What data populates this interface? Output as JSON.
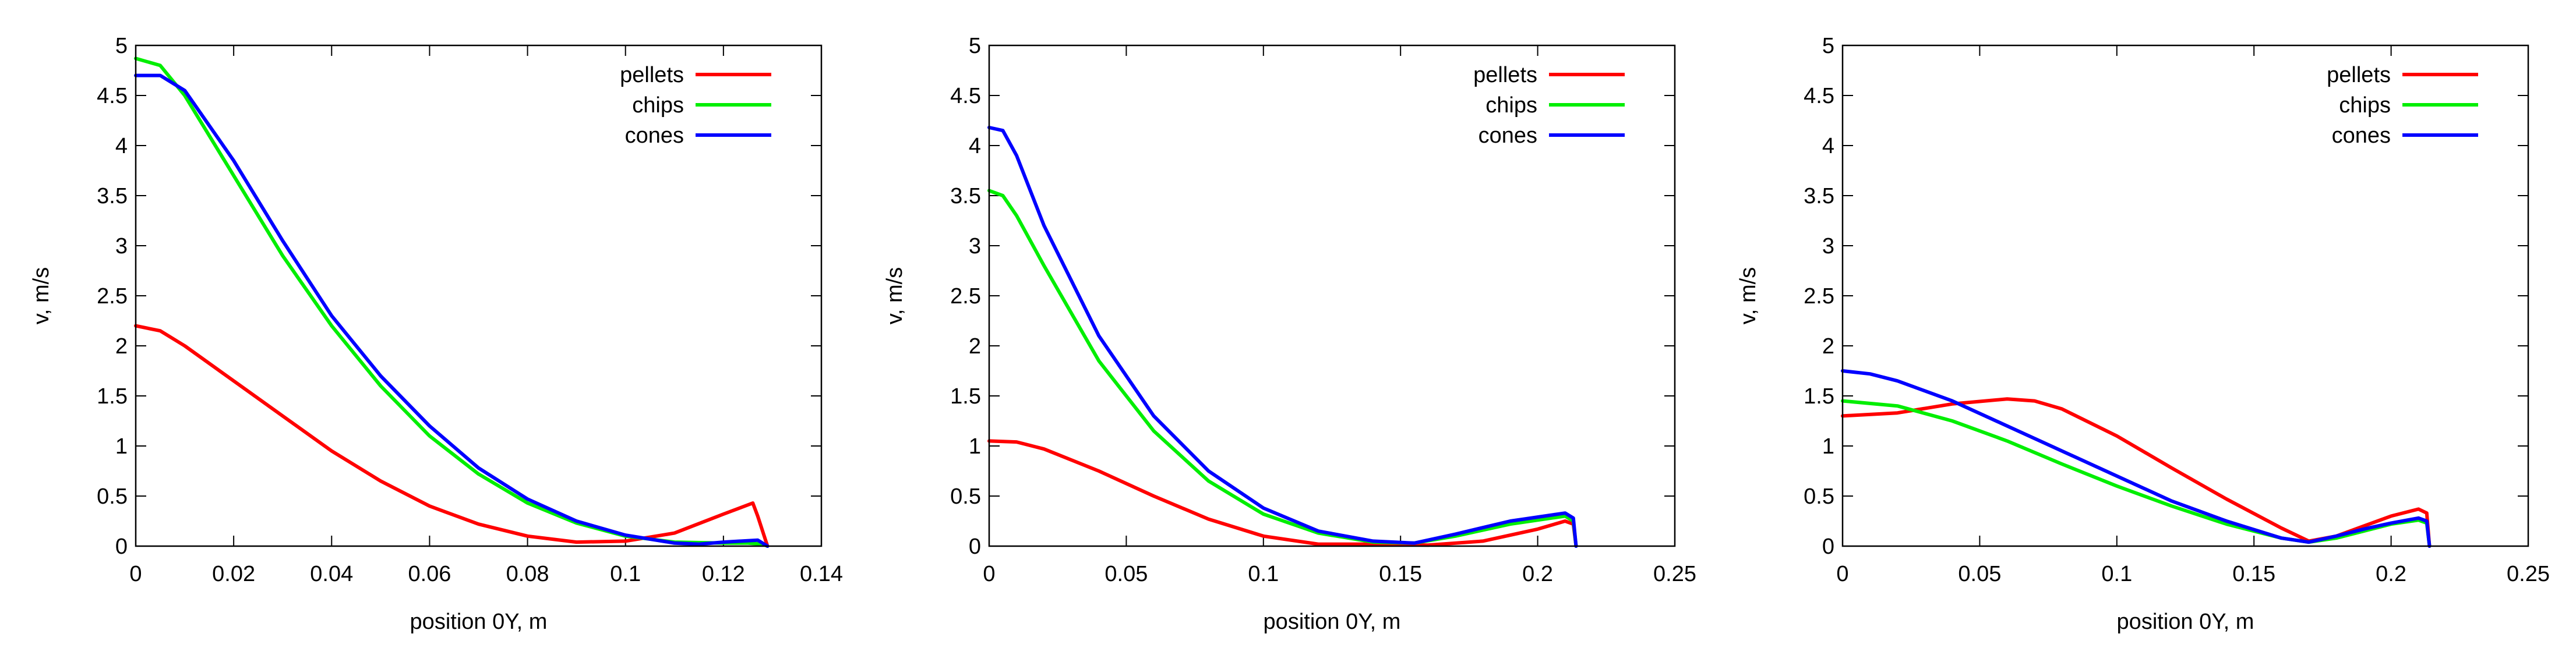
{
  "chart_data": [
    {
      "type": "line",
      "title": "",
      "xlabel": "position 0Y, m",
      "ylabel": "v, m/s",
      "xlim": [
        0,
        0.14
      ],
      "ylim": [
        0,
        5
      ],
      "xticks": [
        0,
        0.02,
        0.04,
        0.06,
        0.08,
        0.1,
        0.12,
        0.14
      ],
      "xtick_labels": [
        "0",
        "0.02",
        "0.04",
        "0.06",
        "0.08",
        "0.1",
        "0.12",
        "0.14"
      ],
      "yticks": [
        0,
        0.5,
        1,
        1.5,
        2,
        2.5,
        3,
        3.5,
        4,
        4.5,
        5
      ],
      "ytick_labels": [
        "0",
        "0.5",
        "1",
        "1.5",
        "2",
        "2.5",
        "3",
        "3.5",
        "4",
        "4.5",
        "5"
      ],
      "legend_position": "top-right",
      "series": [
        {
          "name": "pellets",
          "color": "#ff0000",
          "x": [
            0,
            0.005,
            0.01,
            0.02,
            0.03,
            0.04,
            0.05,
            0.06,
            0.07,
            0.08,
            0.09,
            0.1,
            0.11,
            0.12,
            0.126,
            0.127,
            0.129
          ],
          "y": [
            2.2,
            2.15,
            2.0,
            1.65,
            1.3,
            0.95,
            0.65,
            0.4,
            0.22,
            0.1,
            0.04,
            0.05,
            0.13,
            0.32,
            0.43,
            0.3,
            0.0
          ]
        },
        {
          "name": "chips",
          "color": "#00ee00",
          "x": [
            0,
            0.005,
            0.01,
            0.02,
            0.03,
            0.04,
            0.05,
            0.06,
            0.07,
            0.08,
            0.09,
            0.1,
            0.11,
            0.12,
            0.125,
            0.128,
            0.129
          ],
          "y": [
            4.87,
            4.8,
            4.5,
            3.7,
            2.9,
            2.2,
            1.6,
            1.1,
            0.72,
            0.43,
            0.23,
            0.1,
            0.04,
            0.03,
            0.03,
            0.02,
            0.0
          ]
        },
        {
          "name": "cones",
          "color": "#0000ff",
          "x": [
            0,
            0.005,
            0.01,
            0.02,
            0.03,
            0.04,
            0.05,
            0.06,
            0.07,
            0.08,
            0.09,
            0.1,
            0.11,
            0.115,
            0.12,
            0.127,
            0.129
          ],
          "y": [
            4.7,
            4.7,
            4.55,
            3.85,
            3.05,
            2.3,
            1.7,
            1.2,
            0.78,
            0.47,
            0.25,
            0.11,
            0.03,
            0.02,
            0.04,
            0.06,
            0.0
          ]
        }
      ]
    },
    {
      "type": "line",
      "title": "",
      "xlabel": "position 0Y, m",
      "ylabel": "v, m/s",
      "xlim": [
        0,
        0.25
      ],
      "ylim": [
        0,
        5
      ],
      "xticks": [
        0,
        0.05,
        0.1,
        0.15,
        0.2,
        0.25
      ],
      "xtick_labels": [
        "0",
        "0.05",
        "0.1",
        "0.15",
        "0.2",
        "0.25"
      ],
      "yticks": [
        0,
        0.5,
        1,
        1.5,
        2,
        2.5,
        3,
        3.5,
        4,
        4.5,
        5
      ],
      "ytick_labels": [
        "0",
        "0.5",
        "1",
        "1.5",
        "2",
        "2.5",
        "3",
        "3.5",
        "4",
        "4.5",
        "5"
      ],
      "legend_position": "top-right",
      "series": [
        {
          "name": "pellets",
          "color": "#ff0000",
          "x": [
            0,
            0.01,
            0.02,
            0.04,
            0.06,
            0.08,
            0.1,
            0.12,
            0.14,
            0.16,
            0.18,
            0.2,
            0.21,
            0.213,
            0.214
          ],
          "y": [
            1.05,
            1.04,
            0.97,
            0.75,
            0.5,
            0.27,
            0.1,
            0.02,
            0.02,
            0.01,
            0.05,
            0.17,
            0.25,
            0.22,
            0.0
          ]
        },
        {
          "name": "chips",
          "color": "#00ee00",
          "x": [
            0,
            0.005,
            0.01,
            0.02,
            0.04,
            0.06,
            0.08,
            0.1,
            0.12,
            0.14,
            0.155,
            0.17,
            0.19,
            0.21,
            0.213,
            0.214
          ],
          "y": [
            3.55,
            3.5,
            3.3,
            2.8,
            1.85,
            1.15,
            0.65,
            0.32,
            0.13,
            0.04,
            0.03,
            0.1,
            0.22,
            0.3,
            0.25,
            0.0
          ]
        },
        {
          "name": "cones",
          "color": "#0000ff",
          "x": [
            0,
            0.005,
            0.01,
            0.02,
            0.04,
            0.06,
            0.08,
            0.1,
            0.12,
            0.14,
            0.155,
            0.17,
            0.19,
            0.21,
            0.213,
            0.214
          ],
          "y": [
            4.18,
            4.15,
            3.9,
            3.2,
            2.1,
            1.3,
            0.75,
            0.38,
            0.15,
            0.05,
            0.03,
            0.12,
            0.25,
            0.33,
            0.28,
            0.0
          ]
        }
      ]
    },
    {
      "type": "line",
      "title": "",
      "xlabel": "position 0Y, m",
      "ylabel": "v, m/s",
      "xlim": [
        0,
        0.25
      ],
      "ylim": [
        0,
        5
      ],
      "xticks": [
        0,
        0.05,
        0.1,
        0.15,
        0.2,
        0.25
      ],
      "xtick_labels": [
        "0",
        "0.05",
        "0.1",
        "0.15",
        "0.2",
        "0.25"
      ],
      "yticks": [
        0,
        0.5,
        1,
        1.5,
        2,
        2.5,
        3,
        3.5,
        4,
        4.5,
        5
      ],
      "ytick_labels": [
        "0",
        "0.5",
        "1",
        "1.5",
        "2",
        "2.5",
        "3",
        "3.5",
        "4",
        "4.5",
        "5"
      ],
      "legend_position": "top-right",
      "series": [
        {
          "name": "pellets",
          "color": "#ff0000",
          "x": [
            0,
            0.02,
            0.04,
            0.06,
            0.07,
            0.08,
            0.1,
            0.12,
            0.14,
            0.16,
            0.17,
            0.18,
            0.19,
            0.2,
            0.21,
            0.213,
            0.214
          ],
          "y": [
            1.3,
            1.33,
            1.42,
            1.47,
            1.45,
            1.37,
            1.1,
            0.78,
            0.47,
            0.18,
            0.05,
            0.1,
            0.2,
            0.3,
            0.37,
            0.33,
            0.0
          ]
        },
        {
          "name": "chips",
          "color": "#00ee00",
          "x": [
            0,
            0.02,
            0.04,
            0.06,
            0.08,
            0.1,
            0.12,
            0.14,
            0.16,
            0.17,
            0.18,
            0.19,
            0.2,
            0.21,
            0.213,
            0.214
          ],
          "y": [
            1.45,
            1.4,
            1.25,
            1.05,
            0.82,
            0.6,
            0.4,
            0.22,
            0.08,
            0.04,
            0.08,
            0.15,
            0.22,
            0.26,
            0.23,
            0.0
          ]
        },
        {
          "name": "cones",
          "color": "#0000ff",
          "x": [
            0,
            0.01,
            0.02,
            0.04,
            0.06,
            0.08,
            0.1,
            0.12,
            0.14,
            0.16,
            0.17,
            0.18,
            0.19,
            0.2,
            0.21,
            0.213,
            0.214
          ],
          "y": [
            1.75,
            1.72,
            1.65,
            1.45,
            1.2,
            0.95,
            0.7,
            0.45,
            0.25,
            0.08,
            0.04,
            0.1,
            0.17,
            0.23,
            0.28,
            0.25,
            0.0
          ]
        }
      ]
    }
  ]
}
